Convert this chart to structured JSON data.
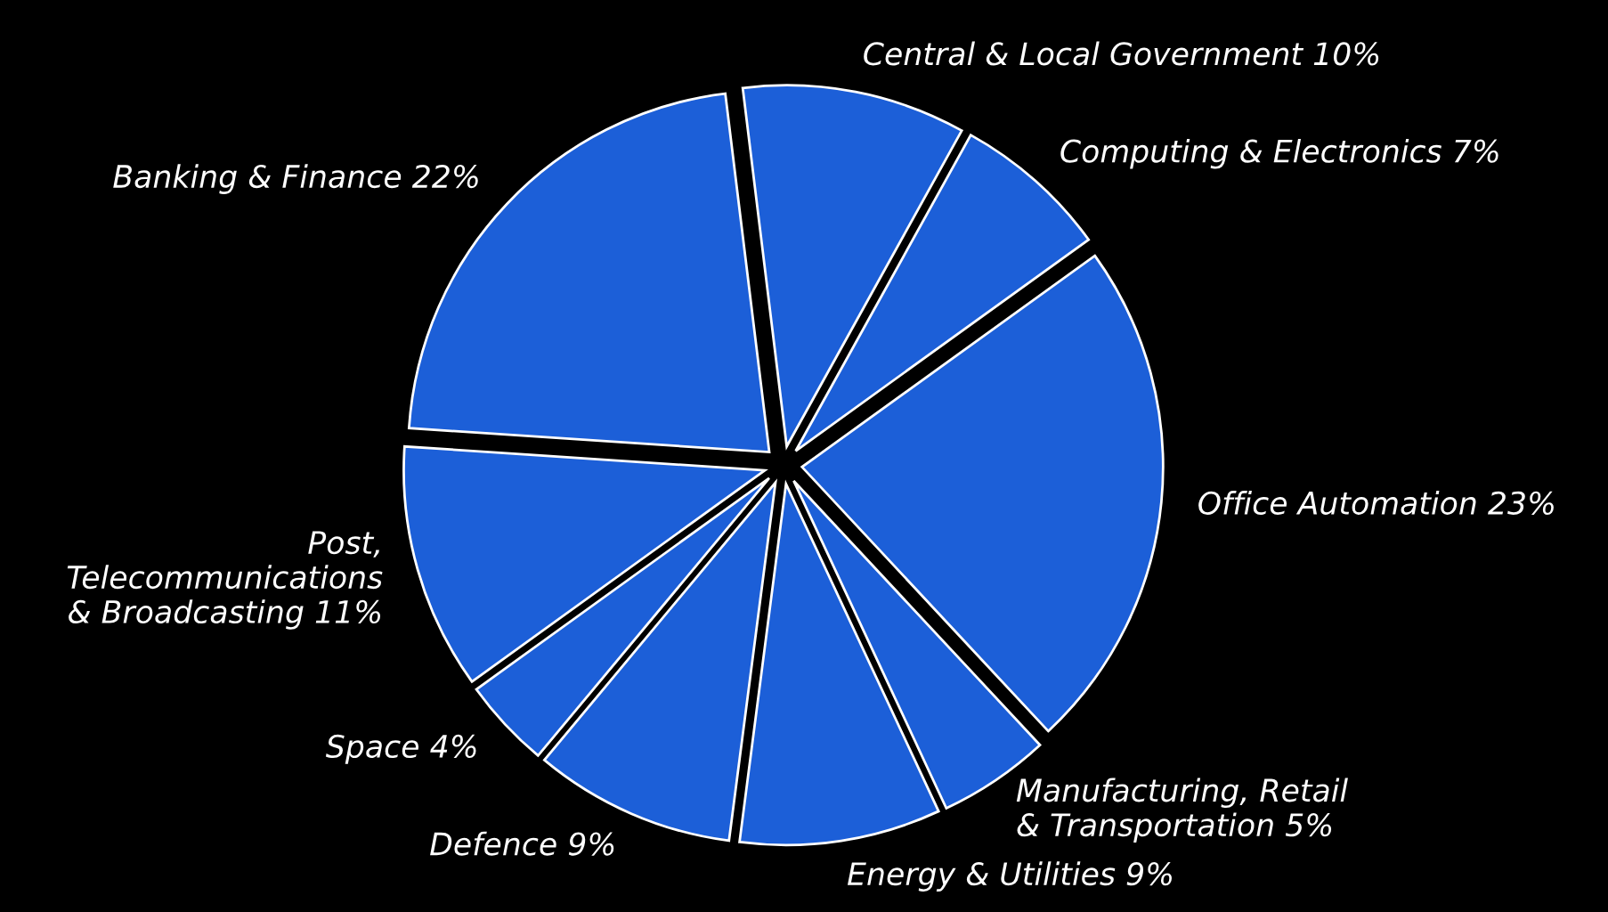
{
  "chart_data": {
    "type": "pie",
    "categories": [
      "Central & Local Government",
      "Computing & Electronics",
      "Office Automation",
      "Manufacturing, Retail\n& Transportation",
      "Energy & Utilities",
      "Defence",
      "Space",
      "Post,\nTelecommunications\n& Broadcasting",
      "Banking & Finance"
    ],
    "values": [
      10,
      7,
      23,
      5,
      9,
      9,
      4,
      11,
      22
    ],
    "value_labels": [
      "10%",
      "7%",
      "23%",
      "5%",
      "9%",
      "9%",
      "4%",
      "11%",
      "22%"
    ],
    "colors": [
      "#1c5fd8",
      "#1c5fd8",
      "#1c5fd8",
      "#1c5fd8",
      "#1c5fd8",
      "#1c5fd8",
      "#1c5fd8",
      "#1c5fd8",
      "#1c5fd8"
    ],
    "legend": false
  }
}
